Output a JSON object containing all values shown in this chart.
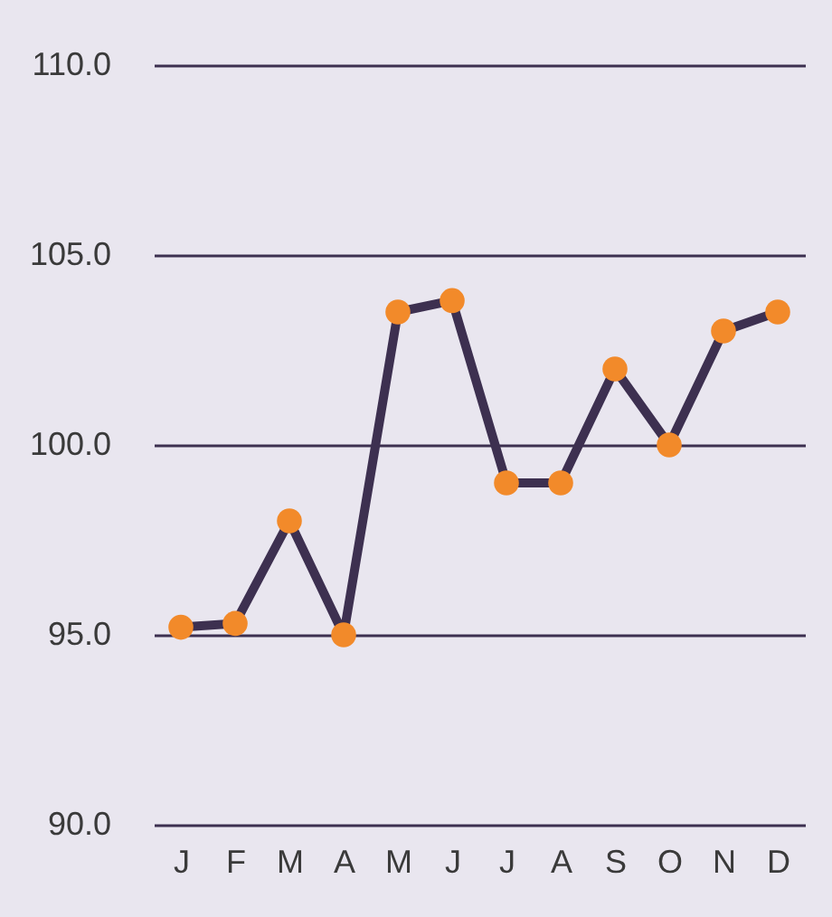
{
  "chart_data": {
    "type": "line",
    "categories": [
      "J",
      "F",
      "M",
      "A",
      "M",
      "J",
      "J",
      "A",
      "S",
      "O",
      "N",
      "D"
    ],
    "series": [
      {
        "color": "#3d3050",
        "colors": [
          "#f28a2a",
          "#f28a2a",
          "#f28a2a",
          "#f28a2a",
          "#f28a2a",
          "#f28a2a",
          "#f28a2a",
          "#f28a2a",
          "#f28a2a",
          "#f28a2a",
          "#f28a2a",
          "#f28a2a"
        ],
        "values": [
          95.2,
          95.3,
          98.0,
          95.0,
          103.5,
          103.8,
          99.0,
          99.0,
          102.0,
          100.0,
          103.0,
          103.5
        ]
      }
    ],
    "ylim": [
      90,
      110
    ],
    "yticks": [
      {
        "value": 90,
        "label": "90.0"
      },
      {
        "value": 95,
        "label": "95.0"
      },
      {
        "value": 100,
        "label": "100.0"
      },
      {
        "value": 105,
        "label": "105.0"
      },
      {
        "value": 110,
        "label": "110.0"
      }
    ],
    "grid": "y",
    "marker": "circle",
    "line_style": "solid"
  }
}
